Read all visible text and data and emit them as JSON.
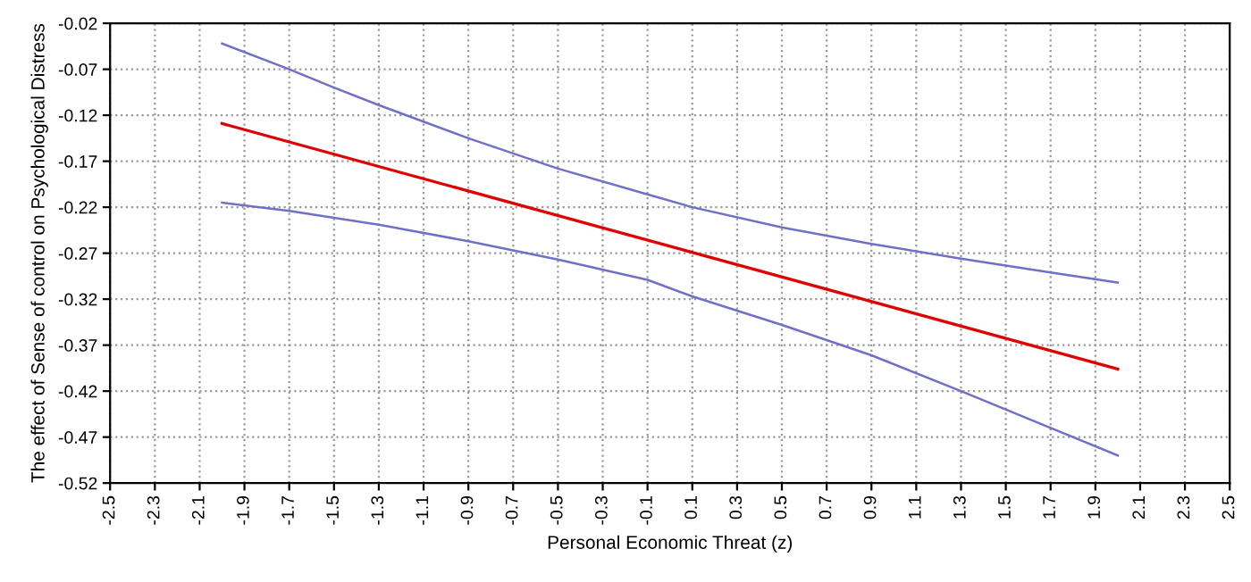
{
  "chart_data": {
    "type": "line",
    "xlabel": "Personal Economic Threat (z)",
    "ylabel": "The effect of Sense of control on Psychological Distress",
    "series": [
      {
        "color": "#7070c8",
        "x": [
          -2.0,
          -1.7,
          -1.5,
          -1.3,
          -0.9,
          -0.5,
          -0.1,
          0.1,
          0.5,
          0.9,
          1.3,
          1.7,
          2.0
        ],
        "values": [
          -0.042,
          -0.07,
          -0.09,
          -0.109,
          -0.145,
          -0.178,
          -0.206,
          -0.22,
          -0.242,
          -0.26,
          -0.276,
          -0.291,
          -0.302
        ]
      },
      {
        "color": "#e00000",
        "x": [
          -2.0,
          2.0
        ],
        "values": [
          -0.129,
          -0.396
        ]
      },
      {
        "color": "#7070c8",
        "x": [
          -2.0,
          -1.7,
          -1.3,
          -0.9,
          -0.5,
          -0.1,
          0.1,
          0.5,
          0.9,
          1.3,
          1.7,
          2.0
        ],
        "values": [
          -0.215,
          -0.224,
          -0.239,
          -0.257,
          -0.277,
          -0.299,
          -0.317,
          -0.348,
          -0.381,
          -0.42,
          -0.46,
          -0.49
        ]
      }
    ],
    "xlim": [
      -2.5,
      2.5
    ],
    "xticks": [
      -2.5,
      -2.3,
      -2.1,
      -1.9,
      -1.7,
      -1.5,
      -1.3,
      -1.1,
      -0.9,
      -0.7,
      -0.5,
      -0.3,
      -0.1,
      0.1,
      0.3,
      0.5,
      0.7,
      0.9,
      1.1,
      1.3,
      1.5,
      1.7,
      1.9,
      2.1,
      2.3,
      2.5
    ],
    "ylim": [
      -0.52,
      -0.02
    ],
    "yticks": [
      -0.52,
      -0.47,
      -0.42,
      -0.37,
      -0.32,
      -0.27,
      -0.22,
      -0.17,
      -0.12,
      -0.07,
      -0.02
    ],
    "grid": true,
    "line_style": "solid",
    "marker": "none",
    "legend": false
  }
}
